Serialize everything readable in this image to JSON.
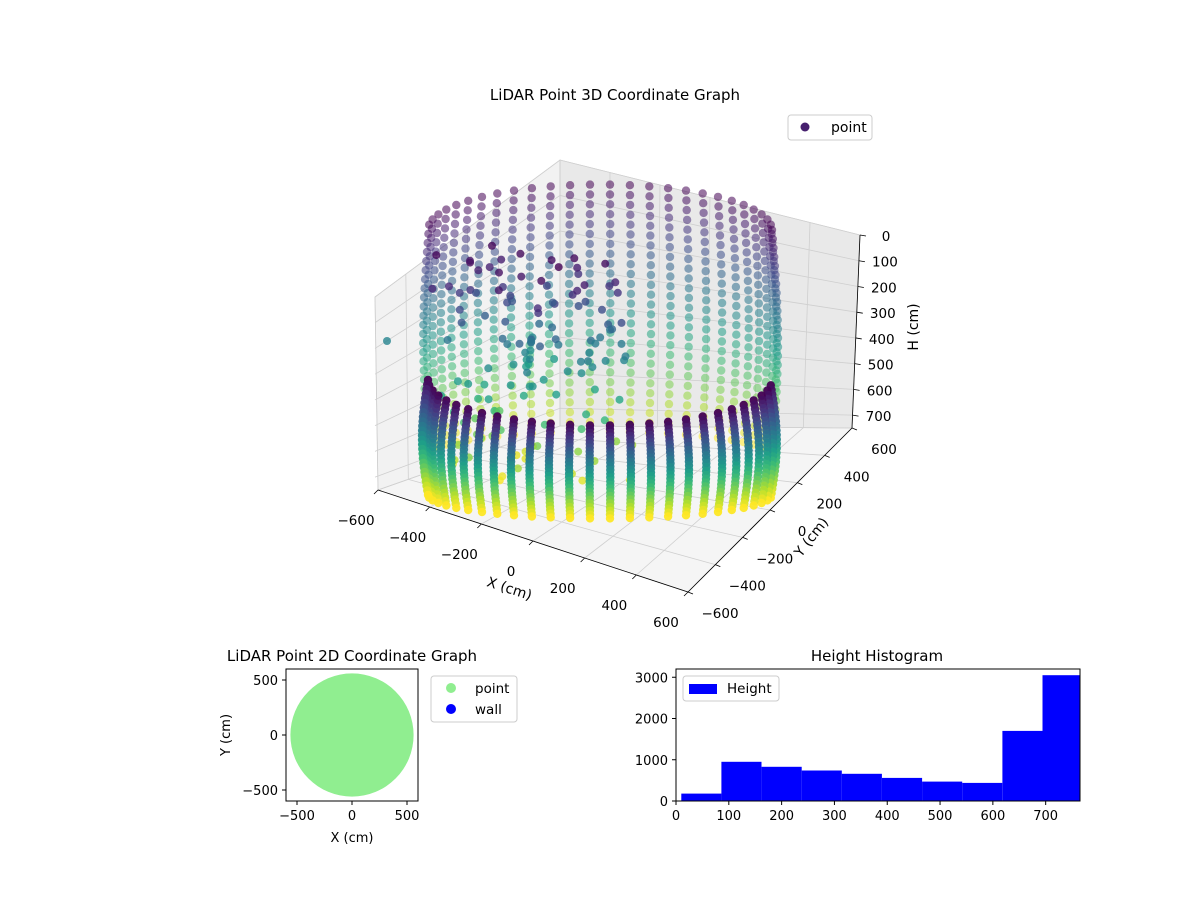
{
  "chart_data": [
    {
      "type": "scatter",
      "title": "LiDAR Point 3D Coordinate Graph",
      "xlabel": "X (cm)",
      "ylabel": "Y (cm)",
      "zlabel": "H (cm)",
      "xlim": [
        -600,
        600
      ],
      "ylim": [
        -600,
        600
      ],
      "zlim": [
        0,
        750
      ],
      "z_inverted": true,
      "x_ticks": [
        "−600",
        "−400",
        "−200",
        "0",
        "200",
        "400",
        "600"
      ],
      "y_ticks": [
        "−600",
        "−400",
        "−200",
        "0",
        "200",
        "400",
        "600"
      ],
      "z_ticks": [
        "0",
        "100",
        "200",
        "300",
        "400",
        "500",
        "600",
        "700"
      ],
      "colormap": "viridis",
      "grid": true,
      "legend": {
        "position": "top-right",
        "entries": [
          {
            "label": "point",
            "color": "#46206e"
          }
        ]
      },
      "shape": "cylindrical wall of points, radius about 550 cm, heights 0 to 750 cm, plus a cluster of interior points",
      "wall_radius_cm": 550,
      "columns": 54
    },
    {
      "type": "scatter",
      "title": "LiDAR Point 2D Coordinate Graph",
      "xlabel": "X (cm)",
      "ylabel": "Y (cm)",
      "xlim": [
        -600,
        600
      ],
      "ylim": [
        -600,
        600
      ],
      "x_ticks": [
        "−500",
        "0",
        "500"
      ],
      "y_ticks": [
        "−500",
        "0",
        "500"
      ],
      "disk_radius_cm": 560,
      "series": [
        {
          "name": "point",
          "color": "#90ee90"
        },
        {
          "name": "wall",
          "color": "#0000ff"
        }
      ],
      "legend": {
        "position": "outside-right"
      }
    },
    {
      "type": "bar",
      "title": "Height Histogram",
      "xlabel": "",
      "ylabel": "",
      "xlim": [
        0,
        765
      ],
      "ylim": [
        0,
        3200
      ],
      "x_ticks": [
        "0",
        "100",
        "200",
        "300",
        "400",
        "500",
        "600",
        "700"
      ],
      "y_ticks": [
        "0",
        "1000",
        "2000",
        "3000"
      ],
      "bin_edges": [
        10,
        86,
        162,
        238,
        314,
        390,
        466,
        542,
        618,
        694,
        765
      ],
      "values": [
        180,
        950,
        830,
        740,
        660,
        560,
        470,
        440,
        1700,
        3050
      ],
      "color": "#0000ff",
      "legend": {
        "position": "top-left",
        "entries": [
          {
            "label": "Height",
            "color": "#0000ff"
          }
        ]
      }
    }
  ]
}
